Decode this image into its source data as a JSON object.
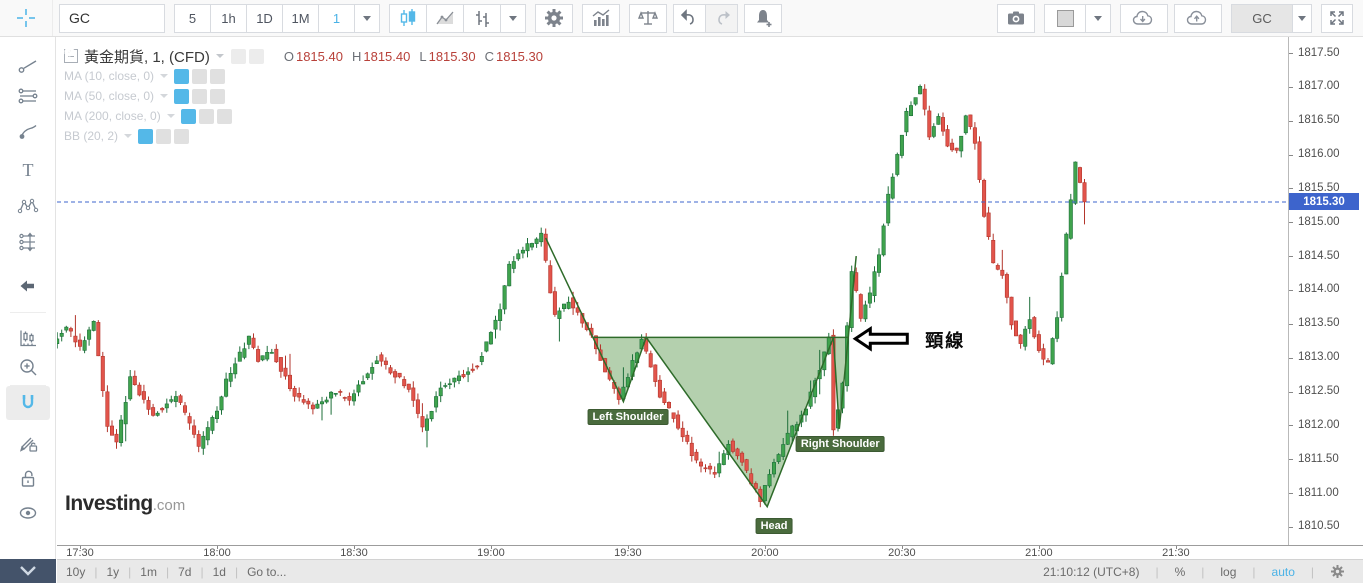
{
  "toolbar": {
    "symbol_value": "GC",
    "intervals": [
      "5",
      "1h",
      "1D",
      "1M"
    ],
    "active_interval": "1",
    "layout_name": "GC"
  },
  "legend": {
    "title": "黃金期貨, 1, (CFD)",
    "ohlc": [
      {
        "k": "O",
        "v": "1815.40"
      },
      {
        "k": "H",
        "v": "1815.40"
      },
      {
        "k": "L",
        "v": "1815.30"
      },
      {
        "k": "C",
        "v": "1815.30"
      }
    ],
    "indicators": [
      {
        "label": "MA (10, close, 0)"
      },
      {
        "label": "MA (50, close, 0)"
      },
      {
        "label": "MA (200, close, 0)"
      },
      {
        "label": "BB (20, 2)"
      }
    ]
  },
  "watermark": {
    "bold": "Investing",
    "rest": ".com"
  },
  "chart_data": {
    "type": "candlestick",
    "title": "黃金期貨, 1, (CFD)",
    "interval_minutes": 1,
    "x_axis": {
      "start_time": "17:25",
      "ticks": [
        [
          5,
          "17:30"
        ],
        [
          35,
          "18:00"
        ],
        [
          65,
          "18:30"
        ],
        [
          95,
          "19:00"
        ],
        [
          125,
          "19:30"
        ],
        [
          155,
          "20:00"
        ],
        [
          185,
          "20:30"
        ],
        [
          215,
          "21:00"
        ],
        [
          245,
          "21:30"
        ]
      ]
    },
    "y_axis": {
      "min": 1810.35,
      "max": 1817.65,
      "ticks": [
        [
          1817.5,
          "1817.50"
        ],
        [
          1817.0,
          "1817.00"
        ],
        [
          1816.5,
          "1816.50"
        ],
        [
          1816.0,
          "1816.00"
        ],
        [
          1815.5,
          "1815.50"
        ],
        [
          1815.0,
          "1815.00"
        ],
        [
          1814.5,
          "1814.50"
        ],
        [
          1814.0,
          "1814.00"
        ],
        [
          1813.5,
          "1813.50"
        ],
        [
          1813.0,
          "1813.00"
        ],
        [
          1812.5,
          "1812.50"
        ],
        [
          1812.0,
          "1812.00"
        ],
        [
          1811.5,
          "1811.50"
        ],
        [
          1811.0,
          "1811.00"
        ],
        [
          1810.5,
          "1810.50"
        ]
      ]
    },
    "last_close": 1815.3,
    "price_line": {
      "value": 1815.3,
      "label": "1815.30"
    },
    "waypoints": [
      [
        0,
        1813.25
      ],
      [
        3,
        1813.45
      ],
      [
        6,
        1813.15
      ],
      [
        9,
        1813.55
      ],
      [
        12,
        1811.95
      ],
      [
        14,
        1811.75
      ],
      [
        17,
        1812.7
      ],
      [
        22,
        1812.15
      ],
      [
        27,
        1812.45
      ],
      [
        32,
        1811.7
      ],
      [
        36,
        1812.2
      ],
      [
        38,
        1812.65
      ],
      [
        43,
        1813.3
      ],
      [
        45,
        1812.95
      ],
      [
        48,
        1813.1
      ],
      [
        53,
        1812.45
      ],
      [
        57,
        1812.25
      ],
      [
        62,
        1812.5
      ],
      [
        65,
        1812.35
      ],
      [
        71,
        1813.0
      ],
      [
        75,
        1812.75
      ],
      [
        78,
        1812.55
      ],
      [
        81,
        1811.95
      ],
      [
        85,
        1812.55
      ],
      [
        90,
        1812.75
      ],
      [
        93,
        1812.9
      ],
      [
        98,
        1813.7
      ],
      [
        100,
        1814.35
      ],
      [
        103,
        1814.6
      ],
      [
        107,
        1814.8
      ],
      [
        110,
        1813.6
      ],
      [
        113,
        1813.85
      ],
      [
        118,
        1813.3
      ],
      [
        124,
        1812.35
      ],
      [
        129,
        1813.3
      ],
      [
        133,
        1812.45
      ],
      [
        137,
        1812.0
      ],
      [
        141,
        1811.45
      ],
      [
        145,
        1811.3
      ],
      [
        148,
        1811.75
      ],
      [
        151,
        1811.45
      ],
      [
        155,
        1810.9
      ],
      [
        157,
        1811.3
      ],
      [
        161,
        1811.85
      ],
      [
        165,
        1812.25
      ],
      [
        168,
        1812.85
      ],
      [
        170,
        1813.3
      ],
      [
        171,
        1811.95
      ],
      [
        173,
        1812.6
      ],
      [
        175,
        1814.3
      ],
      [
        177,
        1813.6
      ],
      [
        179,
        1813.95
      ],
      [
        181,
        1814.55
      ],
      [
        183,
        1815.4
      ],
      [
        185,
        1816.0
      ],
      [
        187,
        1816.6
      ],
      [
        190,
        1817.0
      ],
      [
        192,
        1816.3
      ],
      [
        194,
        1816.55
      ],
      [
        196,
        1816.15
      ],
      [
        198,
        1816.05
      ],
      [
        200,
        1816.55
      ],
      [
        202,
        1816.2
      ],
      [
        204,
        1815.1
      ],
      [
        206,
        1814.4
      ],
      [
        208,
        1814.2
      ],
      [
        210,
        1813.5
      ],
      [
        212,
        1813.2
      ],
      [
        214,
        1813.6
      ],
      [
        216,
        1813.1
      ],
      [
        218,
        1812.9
      ],
      [
        220,
        1813.6
      ],
      [
        222,
        1814.8
      ],
      [
        224,
        1815.85
      ],
      [
        226,
        1815.3
      ]
    ],
    "pattern": {
      "name": "head-and-shoulders",
      "points": [
        [
          107,
          1814.77
        ],
        [
          124,
          1812.35
        ],
        [
          129,
          1813.3
        ],
        [
          155.5,
          1810.8
        ],
        [
          170,
          1813.3
        ],
        [
          171.3,
          1811.95
        ],
        [
          175,
          1814.5
        ]
      ],
      "neckline": {
        "level": 1813.3,
        "t1": 117.3,
        "t2": 173.3
      },
      "fills": [
        [
          [
            117.3,
            1813.3
          ],
          [
            124,
            1812.35
          ],
          [
            129,
            1813.3
          ]
        ],
        [
          [
            129,
            1813.3
          ],
          [
            155.5,
            1810.8
          ],
          [
            170,
            1813.3
          ]
        ],
        [
          [
            170,
            1813.3
          ],
          [
            171.3,
            1811.95
          ],
          [
            173.3,
            1813.3
          ]
        ]
      ],
      "labels": [
        {
          "text": "Left Shoulder",
          "t": 125,
          "p": 1812.12
        },
        {
          "text": "Head",
          "t": 157,
          "p": 1810.52
        },
        {
          "text": "Right Shoulder",
          "t": 171.5,
          "p": 1811.72
        }
      ],
      "annotation": {
        "text": "頸線",
        "text_t": 194.5,
        "text_p": 1813.26,
        "arrow_tip_t": 174.8,
        "arrow_p": 1813.28
      }
    },
    "colors": {
      "up": "#3fa34d",
      "up_stroke": "#1d6f3a",
      "down": "#e2544b",
      "down_stroke": "#b3362c",
      "pattern_fill": "rgba(76,143,61,0.42)",
      "pattern_stroke": "#2e6b2a",
      "price_line": "#3d64cc",
      "price_label_bg": "#3d64cc",
      "accent_blue": "#54b8e8"
    }
  },
  "bottom_bar": {
    "ranges": [
      "10y",
      "1y",
      "1m",
      "7d",
      "1d",
      "Go to..."
    ],
    "clock": "21:10:12 (UTC+8)",
    "percent_label": "%",
    "log_label": "log",
    "auto_label": "auto"
  }
}
